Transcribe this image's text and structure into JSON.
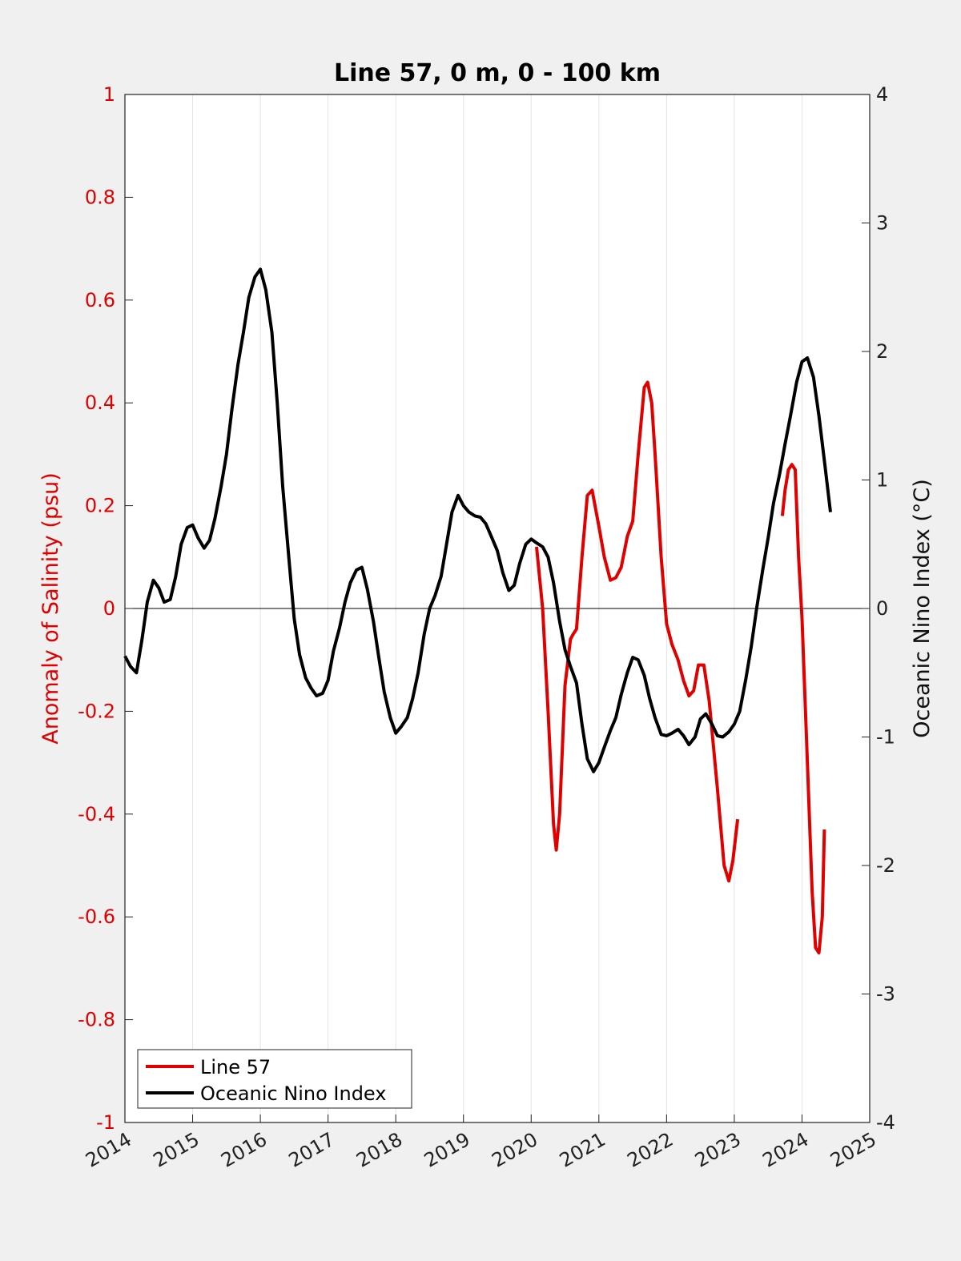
{
  "chart_data": {
    "type": "line",
    "title": "Line 57, 0 m, 0 - 100 km",
    "ylabel_left": "Anomaly of Salinity (psu)",
    "ylabel_right": "Oceanic Nino Index (°C)",
    "xlim": [
      2014,
      2025
    ],
    "ylim_left": [
      -1,
      1
    ],
    "ylim_right": [
      -4,
      4
    ],
    "x_ticks": [
      "2014",
      "2015",
      "2016",
      "2017",
      "2018",
      "2019",
      "2020",
      "2021",
      "2022",
      "2023",
      "2024",
      "2025"
    ],
    "y_left_ticks": [
      "-1",
      "-0.8",
      "-0.6",
      "-0.4",
      "-0.2",
      "0",
      "0.2",
      "0.4",
      "0.6",
      "0.8",
      "1"
    ],
    "y_right_ticks": [
      "-4",
      "-3",
      "-2",
      "-1",
      "0",
      "1",
      "2",
      "3",
      "4"
    ],
    "grid": "vertical",
    "legend": {
      "location": "bottom-left",
      "entries": [
        {
          "label": "Line 57",
          "color": "#e00000"
        },
        {
          "label": "Oceanic Nino Index",
          "color": "#000000"
        }
      ]
    },
    "series": [
      {
        "name": "Line 57",
        "axis": "left",
        "color": "#e00000",
        "segments": [
          [
            [
              2020.08,
              0.12
            ],
            [
              2020.17,
              0.0
            ],
            [
              2020.25,
              -0.2
            ],
            [
              2020.33,
              -0.42
            ],
            [
              2020.37,
              -0.47
            ],
            [
              2020.42,
              -0.4
            ],
            [
              2020.5,
              -0.15
            ],
            [
              2020.58,
              -0.06
            ],
            [
              2020.62,
              -0.05
            ],
            [
              2020.67,
              -0.04
            ],
            [
              2020.75,
              0.1
            ],
            [
              2020.83,
              0.22
            ],
            [
              2020.9,
              0.23
            ],
            [
              2021.0,
              0.16
            ],
            [
              2021.08,
              0.1
            ],
            [
              2021.17,
              0.055
            ],
            [
              2021.25,
              0.06
            ],
            [
              2021.33,
              0.08
            ],
            [
              2021.42,
              0.14
            ],
            [
              2021.5,
              0.17
            ],
            [
              2021.58,
              0.3
            ],
            [
              2021.67,
              0.43
            ],
            [
              2021.72,
              0.44
            ],
            [
              2021.78,
              0.4
            ],
            [
              2021.83,
              0.3
            ],
            [
              2021.92,
              0.1
            ],
            [
              2022.0,
              -0.03
            ],
            [
              2022.08,
              -0.07
            ],
            [
              2022.17,
              -0.1
            ],
            [
              2022.25,
              -0.14
            ],
            [
              2022.33,
              -0.17
            ],
            [
              2022.4,
              -0.16
            ],
            [
              2022.47,
              -0.11
            ],
            [
              2022.55,
              -0.11
            ],
            [
              2022.63,
              -0.18
            ],
            [
              2022.75,
              -0.35
            ],
            [
              2022.85,
              -0.5
            ],
            [
              2022.92,
              -0.53
            ],
            [
              2022.98,
              -0.49
            ],
            [
              2023.05,
              -0.41
            ]
          ],
          [
            [
              2023.71,
              0.18
            ],
            [
              2023.75,
              0.23
            ],
            [
              2023.8,
              0.27
            ],
            [
              2023.85,
              0.28
            ],
            [
              2023.9,
              0.27
            ],
            [
              2023.95,
              0.1
            ],
            [
              2024.0,
              -0.02
            ],
            [
              2024.08,
              -0.3
            ],
            [
              2024.15,
              -0.55
            ],
            [
              2024.2,
              -0.66
            ],
            [
              2024.25,
              -0.67
            ],
            [
              2024.3,
              -0.6
            ],
            [
              2024.33,
              -0.43
            ]
          ]
        ]
      },
      {
        "name": "Oceanic Nino Index",
        "axis": "right",
        "color": "#000000",
        "segments": [
          [
            [
              2014.0,
              -0.37
            ],
            [
              2014.08,
              -0.45
            ],
            [
              2014.17,
              -0.5
            ],
            [
              2014.25,
              -0.25
            ],
            [
              2014.33,
              0.05
            ],
            [
              2014.42,
              0.22
            ],
            [
              2014.5,
              0.16
            ],
            [
              2014.58,
              0.05
            ],
            [
              2014.67,
              0.07
            ],
            [
              2014.75,
              0.25
            ],
            [
              2014.83,
              0.5
            ],
            [
              2014.92,
              0.63
            ],
            [
              2015.0,
              0.65
            ],
            [
              2015.08,
              0.55
            ],
            [
              2015.17,
              0.47
            ],
            [
              2015.25,
              0.53
            ],
            [
              2015.33,
              0.7
            ],
            [
              2015.42,
              0.95
            ],
            [
              2015.5,
              1.2
            ],
            [
              2015.58,
              1.55
            ],
            [
              2015.67,
              1.9
            ],
            [
              2015.75,
              2.15
            ],
            [
              2015.83,
              2.42
            ],
            [
              2015.92,
              2.58
            ],
            [
              2016.0,
              2.64
            ],
            [
              2016.08,
              2.48
            ],
            [
              2016.17,
              2.15
            ],
            [
              2016.25,
              1.6
            ],
            [
              2016.33,
              0.95
            ],
            [
              2016.42,
              0.4
            ],
            [
              2016.5,
              -0.08
            ],
            [
              2016.58,
              -0.36
            ],
            [
              2016.67,
              -0.54
            ],
            [
              2016.75,
              -0.62
            ],
            [
              2016.83,
              -0.68
            ],
            [
              2016.92,
              -0.66
            ],
            [
              2017.0,
              -0.56
            ],
            [
              2017.08,
              -0.33
            ],
            [
              2017.17,
              -0.15
            ],
            [
              2017.25,
              0.05
            ],
            [
              2017.33,
              0.2
            ],
            [
              2017.42,
              0.3
            ],
            [
              2017.5,
              0.32
            ],
            [
              2017.58,
              0.15
            ],
            [
              2017.67,
              -0.1
            ],
            [
              2017.75,
              -0.38
            ],
            [
              2017.83,
              -0.65
            ],
            [
              2017.92,
              -0.85
            ],
            [
              2018.0,
              -0.97
            ],
            [
              2018.08,
              -0.92
            ],
            [
              2018.17,
              -0.85
            ],
            [
              2018.25,
              -0.7
            ],
            [
              2018.33,
              -0.5
            ],
            [
              2018.42,
              -0.2
            ],
            [
              2018.5,
              0.0
            ],
            [
              2018.58,
              0.1
            ],
            [
              2018.67,
              0.25
            ],
            [
              2018.75,
              0.5
            ],
            [
              2018.83,
              0.75
            ],
            [
              2018.92,
              0.88
            ],
            [
              2019.0,
              0.8
            ],
            [
              2019.08,
              0.75
            ],
            [
              2019.17,
              0.72
            ],
            [
              2019.25,
              0.71
            ],
            [
              2019.33,
              0.66
            ],
            [
              2019.42,
              0.55
            ],
            [
              2019.5,
              0.45
            ],
            [
              2019.58,
              0.28
            ],
            [
              2019.67,
              0.14
            ],
            [
              2019.75,
              0.18
            ],
            [
              2019.83,
              0.35
            ],
            [
              2019.92,
              0.5
            ],
            [
              2020.0,
              0.54
            ],
            [
              2020.08,
              0.51
            ],
            [
              2020.17,
              0.48
            ],
            [
              2020.25,
              0.4
            ],
            [
              2020.33,
              0.2
            ],
            [
              2020.42,
              -0.1
            ],
            [
              2020.5,
              -0.32
            ],
            [
              2020.58,
              -0.45
            ],
            [
              2020.67,
              -0.58
            ],
            [
              2020.75,
              -0.9
            ],
            [
              2020.83,
              -1.17
            ],
            [
              2020.92,
              -1.27
            ],
            [
              2021.0,
              -1.2
            ],
            [
              2021.08,
              -1.08
            ],
            [
              2021.17,
              -0.95
            ],
            [
              2021.25,
              -0.85
            ],
            [
              2021.33,
              -0.67
            ],
            [
              2021.42,
              -0.5
            ],
            [
              2021.5,
              -0.38
            ],
            [
              2021.58,
              -0.4
            ],
            [
              2021.67,
              -0.52
            ],
            [
              2021.75,
              -0.7
            ],
            [
              2021.83,
              -0.85
            ],
            [
              2021.92,
              -0.98
            ],
            [
              2022.0,
              -0.99
            ],
            [
              2022.08,
              -0.97
            ],
            [
              2022.17,
              -0.94
            ],
            [
              2022.25,
              -0.99
            ],
            [
              2022.33,
              -1.06
            ],
            [
              2022.42,
              -1.0
            ],
            [
              2022.5,
              -0.86
            ],
            [
              2022.58,
              -0.82
            ],
            [
              2022.67,
              -0.9
            ],
            [
              2022.75,
              -0.99
            ],
            [
              2022.83,
              -1.0
            ],
            [
              2022.92,
              -0.96
            ],
            [
              2023.0,
              -0.9
            ],
            [
              2023.08,
              -0.8
            ],
            [
              2023.17,
              -0.55
            ],
            [
              2023.25,
              -0.3
            ],
            [
              2023.33,
              0.0
            ],
            [
              2023.42,
              0.3
            ],
            [
              2023.5,
              0.55
            ],
            [
              2023.58,
              0.82
            ],
            [
              2023.67,
              1.05
            ],
            [
              2023.75,
              1.28
            ],
            [
              2023.83,
              1.5
            ],
            [
              2023.92,
              1.76
            ],
            [
              2024.0,
              1.92
            ],
            [
              2024.08,
              1.95
            ],
            [
              2024.17,
              1.8
            ],
            [
              2024.25,
              1.5
            ],
            [
              2024.33,
              1.15
            ],
            [
              2024.42,
              0.75
            ]
          ]
        ]
      }
    ]
  }
}
